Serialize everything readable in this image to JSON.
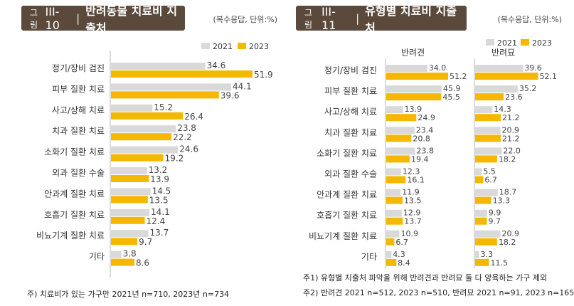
{
  "colors": {
    "y2021": "#d9d9d9",
    "y2023": "#f5b800",
    "title_bg": "#5b4a3b"
  },
  "chart_data": [
    {
      "type": "bar",
      "orientation": "horizontal",
      "figure_prefix": "그림",
      "figure_number": "III-10",
      "title": "반려동물 치료비 지출처",
      "unit": "(복수응답, 단위:%)",
      "legend": [
        "2021",
        "2023"
      ],
      "categories": [
        "정기/장비 검진",
        "피부 질환 치료",
        "사고/상해 치료",
        "치과 질환 치료",
        "소화기 질환 치료",
        "외과 질환 수술",
        "안과계 질환 치료",
        "호흡기 질환 치료",
        "비뇨기계 질환 치료",
        "기타"
      ],
      "series": [
        {
          "name": "2021",
          "values": [
            34.6,
            44.1,
            15.2,
            23.8,
            24.6,
            13.2,
            14.5,
            14.1,
            13.7,
            3.8
          ]
        },
        {
          "name": "2023",
          "values": [
            51.9,
            39.6,
            26.4,
            22.2,
            19.2,
            13.9,
            13.5,
            12.4,
            9.7,
            8.6
          ]
        }
      ],
      "xlim": [
        0,
        60
      ],
      "notes": [
        "주) 치료비가 있는 가구만 2021년 n=710, 2023년 n=734"
      ]
    },
    {
      "type": "bar",
      "orientation": "horizontal",
      "figure_prefix": "그림",
      "figure_number": "III-11",
      "title": "유형별 치료비 지출처",
      "unit": "(복수응답, 단위:%)",
      "legend": [
        "2021",
        "2023"
      ],
      "categories": [
        "정기/장비 검진",
        "피부 질환 치료",
        "사고/상해 치료",
        "치과 질환 치료",
        "소화기 질환 치료",
        "외과 질환 수술",
        "안과계 질환 치료",
        "호흡기 질환 치료",
        "비뇨기계 질환 치료",
        "기타"
      ],
      "groups": [
        {
          "name": "반려견",
          "series": [
            {
              "name": "2021",
              "values": [
                34.0,
                45.9,
                13.9,
                23.4,
                23.8,
                12.3,
                11.9,
                12.9,
                10.9,
                4.3
              ]
            },
            {
              "name": "2023",
              "values": [
                51.2,
                45.5,
                24.9,
                20.8,
                19.4,
                16.1,
                13.5,
                13.7,
                6.7,
                8.4
              ]
            }
          ]
        },
        {
          "name": "반려묘",
          "series": [
            {
              "name": "2021",
              "values": [
                39.6,
                35.2,
                14.3,
                20.9,
                22.0,
                5.5,
                18.7,
                9.9,
                20.9,
                3.3
              ]
            },
            {
              "name": "2023",
              "values": [
                52.1,
                23.6,
                21.2,
                21.2,
                18.2,
                6.7,
                13.3,
                9.7,
                18.2,
                11.5
              ]
            }
          ]
        }
      ],
      "xlim": [
        0,
        60
      ],
      "notes": [
        "주1) 유형별 지출처 파악을 위해 반려견과 반려묘 둘 다 양육하는 가구 제외",
        "주2) 반려견 2021 n=512, 2023 n=510, 반려묘 2021 n=91, 2023 n=165"
      ]
    }
  ]
}
